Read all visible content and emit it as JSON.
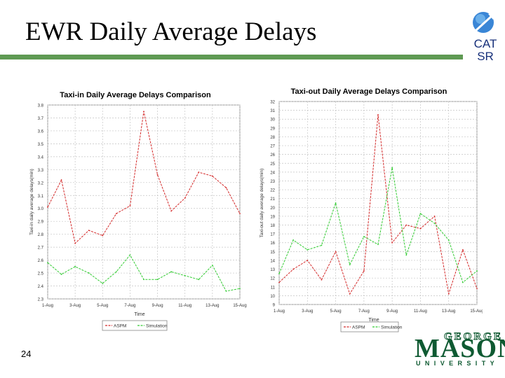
{
  "slide": {
    "title": "EWR Daily Average Delays",
    "page_number": "24",
    "logo": {
      "line1": "CAT",
      "line2": "SR"
    },
    "university": {
      "george": "GEORGE",
      "mason": "MASON",
      "university": "UNIVERSITY"
    }
  },
  "colors": {
    "rule": "#5f9a53",
    "asdi": "#d42a2a",
    "sim": "#33cc33"
  },
  "chart_data": [
    {
      "type": "line",
      "title": "Taxi-in Daily Average Delays Comparison",
      "xlabel": "Time",
      "ylabel": "Taxi-in daily average delays(min)",
      "ylim": [
        2.3,
        3.8
      ],
      "y_ticks": [
        "2.3",
        "2.4",
        "2.5",
        "2.6",
        "2.7",
        "2.8",
        "2.9",
        "3.0",
        "3.1",
        "3.2",
        "3.3",
        "3.4",
        "3.5",
        "3.6",
        "3.7",
        "3.8"
      ],
      "x_ticks": [
        "1-Aug",
        "3-Aug",
        "5-Aug",
        "7-Aug",
        "9-Aug",
        "11-Aug",
        "13-Aug",
        "15-Aug"
      ],
      "x": [
        1,
        2,
        3,
        4,
        5,
        6,
        7,
        8,
        9,
        10,
        11,
        12,
        13,
        14,
        15
      ],
      "series": [
        {
          "name": "ASPM",
          "values": [
            3.01,
            3.22,
            2.73,
            2.83,
            2.79,
            2.96,
            3.02,
            3.75,
            3.26,
            2.98,
            3.08,
            3.28,
            3.25,
            3.16,
            2.96
          ]
        },
        {
          "name": "Simulation",
          "values": [
            2.58,
            2.49,
            2.55,
            2.5,
            2.42,
            2.51,
            2.64,
            2.45,
            2.45,
            2.51,
            2.48,
            2.45,
            2.56,
            2.36,
            2.38
          ]
        }
      ],
      "legend": [
        "ASPM",
        "Simulation"
      ]
    },
    {
      "type": "line",
      "title": "Taxi-out Daily Average Delays Comparison",
      "xlabel": "Time",
      "ylabel": "Taxi-out daily average delays(min)",
      "ylim": [
        9,
        32
      ],
      "y_ticks": [
        "9",
        "10",
        "11",
        "12",
        "13",
        "14",
        "15",
        "16",
        "17",
        "18",
        "19",
        "20",
        "21",
        "22",
        "23",
        "24",
        "25",
        "26",
        "27",
        "28",
        "29",
        "30",
        "31",
        "32"
      ],
      "x_ticks": [
        "1-Aug",
        "3-Aug",
        "5-Aug",
        "7-Aug",
        "9-Aug",
        "11-Aug",
        "13-Aug",
        "15-Aug"
      ],
      "x": [
        1,
        2,
        3,
        4,
        5,
        6,
        7,
        8,
        9,
        10,
        11,
        12,
        13,
        14,
        15
      ],
      "series": [
        {
          "name": "ASPM",
          "values": [
            11.5,
            13.0,
            14.0,
            11.8,
            15.0,
            10.2,
            12.8,
            30.5,
            16.0,
            18.0,
            17.6,
            19.0,
            10.2,
            15.2,
            10.8
          ]
        },
        {
          "name": "Simulation",
          "values": [
            12.5,
            16.3,
            15.2,
            15.7,
            20.5,
            13.5,
            16.7,
            15.8,
            24.5,
            14.6,
            19.3,
            18.2,
            16.3,
            11.5,
            12.8
          ]
        }
      ],
      "legend": [
        "ASPM",
        "Simulation"
      ]
    }
  ]
}
